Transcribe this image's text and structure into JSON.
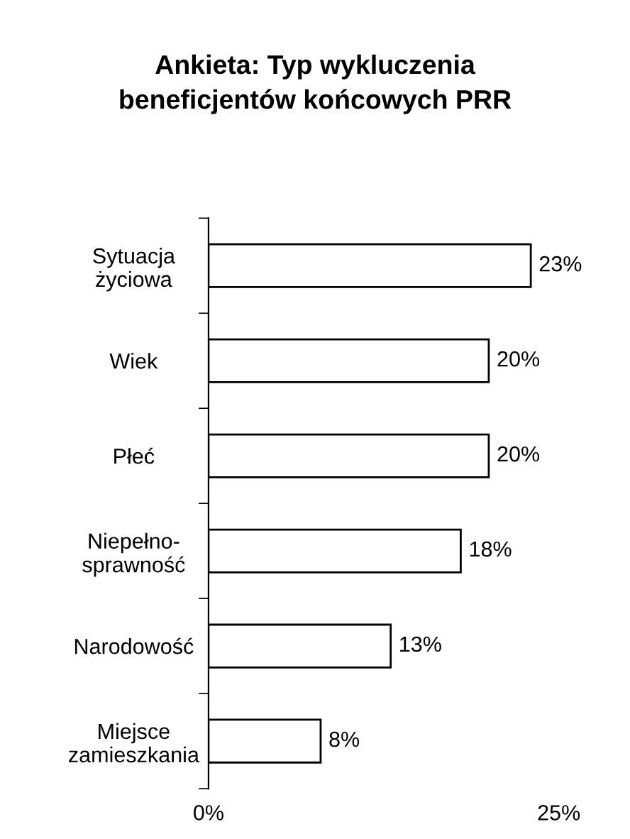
{
  "chart_data": {
    "type": "bar",
    "orientation": "horizontal",
    "title": "Ankieta: Typ wykluczenia\nbeneficjentów końcowych PRR",
    "categories": [
      "Sytuacja\nżyciowa",
      "Wiek",
      "Płeć",
      "Niepełno-\nsprawność",
      "Narodowość",
      "Miejsce\nzamieszkania"
    ],
    "values": [
      23,
      20,
      20,
      18,
      13,
      8
    ],
    "value_labels": [
      "23%",
      "20%",
      "20%",
      "18%",
      "13%",
      "8%"
    ],
    "color": "#ffffff",
    "xlim": [
      0,
      25
    ],
    "xticks": [
      {
        "value": 0,
        "label": "0%"
      },
      {
        "value": 25,
        "label": "25%"
      }
    ],
    "grid": false
  }
}
